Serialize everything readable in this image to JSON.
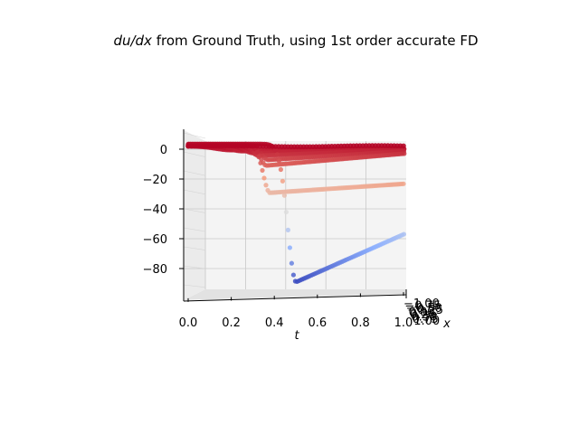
{
  "chart_data": {
    "type": "scatter",
    "title_italic": "du/dx",
    "title_rest": " from Ground Truth, using 1st order accurate FD",
    "xlabel": "t",
    "ylabel": "x",
    "t_ticks": [
      "0.0",
      "0.2",
      "0.4",
      "0.6",
      "0.8",
      "1.0"
    ],
    "z_ticks": [
      "0",
      "−20",
      "−40",
      "−60",
      "−80"
    ],
    "x_ticks": [
      "−1.00",
      "−0.75",
      "−0.50",
      "−0.25",
      "0.00",
      "0.25",
      "0.50",
      "0.75",
      "1.00"
    ],
    "t_range": [
      0,
      1
    ],
    "z_range": [
      -97,
      13
    ],
    "grid": true,
    "colormap": "coolwarm",
    "colormap_stops": [
      "#3b4cc0",
      "#8db0fe",
      "#dddddd",
      "#f49a7b",
      "#b40426"
    ],
    "curves": [
      {
        "min": -90.5,
        "t_min": 0.5,
        "end": -58.5,
        "width": 0.055
      },
      {
        "min": -30.5,
        "t_min": 0.38,
        "end": -24.5,
        "width": 0.045
      },
      {
        "min": -12,
        "t_min": 0.36,
        "end": -4,
        "width": 0.04
      },
      {
        "min": -8,
        "t_min": 0.37,
        "end": -2.2,
        "width": 0.045
      },
      {
        "min": -5,
        "t_min": 0.33,
        "end": -1,
        "width": 0.05
      },
      {
        "min": -3,
        "t_min": 0.3,
        "end": -0.3,
        "width": 0.06
      },
      {
        "min": -1.5,
        "t_min": 0.25,
        "end": 0,
        "width": 0.08
      },
      {
        "min": -0.6,
        "t_min": 0.2,
        "end": 0.6,
        "width": 0.1
      }
    ]
  }
}
